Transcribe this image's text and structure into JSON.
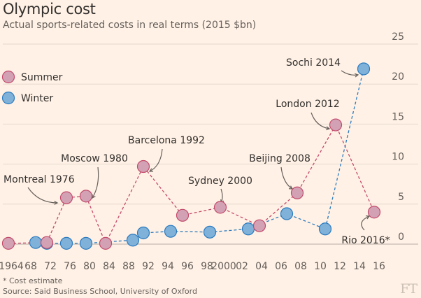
{
  "title": "Olympic cost",
  "subtitle": "Actual sports-related costs in real terms (2015 $bn)",
  "footnote": "* Cost estimate",
  "source": "Source: Said Business School, University of Oxford",
  "logo": "FT",
  "colors": {
    "summer": "#d2a2b4",
    "summer_line": "#c44a6c",
    "winter": "#7fb1d9",
    "winter_line": "#2b7bc0",
    "grid": "#e5d8cc",
    "background": "#fff1e5"
  },
  "chart_data": {
    "type": "scatter",
    "title": "Olympic cost",
    "subtitle": "Actual sports-related costs in real terms (2015 $bn)",
    "x_tick_labels": [
      "1964",
      "68",
      "72",
      "76",
      "80",
      "84",
      "88",
      "92",
      "94",
      "96",
      "98",
      "2000",
      "02",
      "04",
      "06",
      "08",
      "10",
      "12",
      "14",
      "16"
    ],
    "y_ticks": [
      0,
      5,
      10,
      15,
      20,
      25
    ],
    "ylim": [
      0,
      25
    ],
    "grid": true,
    "legend_placement": "top-left",
    "series": [
      {
        "name": "Summer",
        "color": "#d2a2b4",
        "points": [
          {
            "x": "1964",
            "y": 0.1
          },
          {
            "x": "72",
            "y": 0.2
          },
          {
            "x": "76",
            "y": 5.8
          },
          {
            "x": "80",
            "y": 6.0
          },
          {
            "x": "84",
            "y": 0.1
          },
          {
            "x": "92",
            "y": 9.7
          },
          {
            "x": "96",
            "y": 3.6
          },
          {
            "x": "2000",
            "y": 4.6
          },
          {
            "x": "04",
            "y": 2.3
          },
          {
            "x": "08",
            "y": 6.4
          },
          {
            "x": "12",
            "y": 14.9
          },
          {
            "x": "16",
            "y": 4.0
          }
        ]
      },
      {
        "name": "Winter",
        "color": "#7fb1d9",
        "points": [
          {
            "x": "68",
            "y": 0.2
          },
          {
            "x": "72",
            "y": 0.1
          },
          {
            "x": "76",
            "y": 0.1
          },
          {
            "x": "80",
            "y": 0.1
          },
          {
            "x": "88",
            "y": 0.5
          },
          {
            "x": "92",
            "y": 1.4
          },
          {
            "x": "94",
            "y": 1.6
          },
          {
            "x": "98",
            "y": 1.5
          },
          {
            "x": "02",
            "y": 1.9
          },
          {
            "x": "06",
            "y": 3.8
          },
          {
            "x": "10",
            "y": 1.9
          },
          {
            "x": "14",
            "y": 21.9
          }
        ]
      }
    ],
    "annotations": [
      {
        "label": "Montreal 1976",
        "x": "76",
        "y": 5.8
      },
      {
        "label": "Moscow 1980",
        "x": "80",
        "y": 6.0
      },
      {
        "label": "Barcelona 1992",
        "x": "92",
        "y": 9.7
      },
      {
        "label": "Sydney 2000",
        "x": "2000",
        "y": 4.6
      },
      {
        "label": "Beijing 2008",
        "x": "08",
        "y": 6.4
      },
      {
        "label": "London 2012",
        "x": "12",
        "y": 14.9
      },
      {
        "label": "Sochi 2014",
        "x": "14",
        "y": 21.9
      },
      {
        "label": "Rio 2016*",
        "x": "16",
        "y": 4.0
      }
    ]
  }
}
